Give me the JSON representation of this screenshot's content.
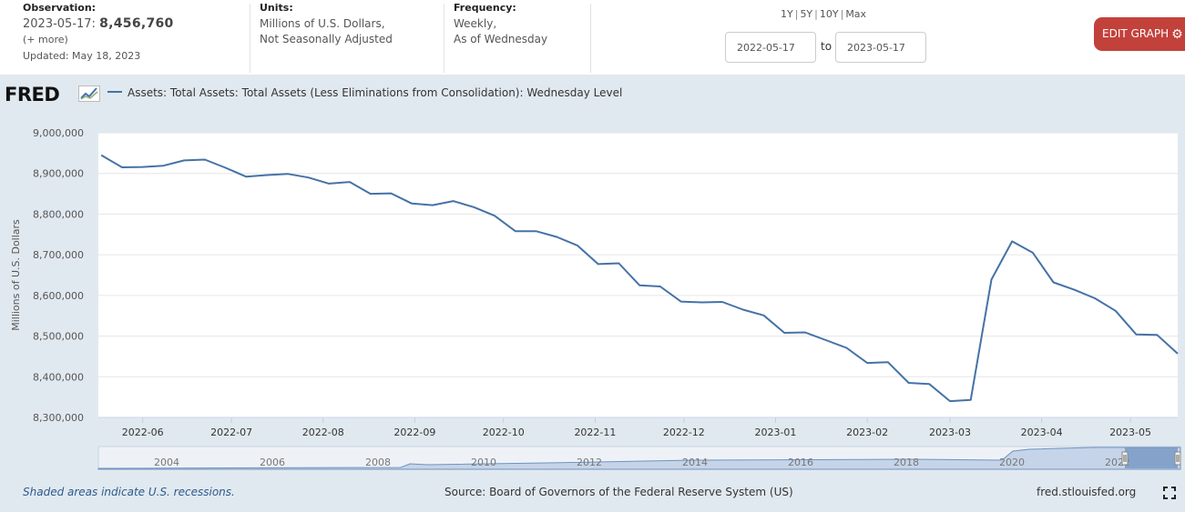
{
  "header": {
    "observation": {
      "label": "Observation:",
      "date": "2023-05-17:",
      "value": "8,456,760",
      "more": "(+ more)",
      "updated": "Updated: May 18, 2023"
    },
    "units": {
      "label": "Units:",
      "line1": "Millions of U.S. Dollars,",
      "line2": "Not Seasonally Adjusted"
    },
    "frequency": {
      "label": "Frequency:",
      "line1": "Weekly,",
      "line2": "As of Wednesday"
    },
    "ranges": [
      "1Y",
      "5Y",
      "10Y",
      "Max"
    ],
    "start_date": "2022-05-17",
    "to_label": "to",
    "end_date": "2023-05-17",
    "edit_button": "EDIT GRAPH"
  },
  "graph": {
    "logo_text": "FRED",
    "footer_recession": "Shaded areas indicate U.S. recessions.",
    "footer_source": "Source: Board of Governors of the Federal Reserve System (US)",
    "footer_site": "fred.stlouisfed.org"
  },
  "colors": {
    "series": "#4572a7",
    "background": "#e1e9f0",
    "edit_button": "#c3413b",
    "navigator_fill": "#6f93c0"
  },
  "chart_data": {
    "type": "line",
    "series": [
      {
        "name": "Assets: Total Assets: Total Assets (Less Eliminations from Consolidation): Wednesday Level",
        "x": [
          "2022-05-18",
          "2022-05-25",
          "2022-06-01",
          "2022-06-08",
          "2022-06-15",
          "2022-06-22",
          "2022-06-29",
          "2022-07-06",
          "2022-07-13",
          "2022-07-20",
          "2022-07-27",
          "2022-08-03",
          "2022-08-10",
          "2022-08-17",
          "2022-08-24",
          "2022-08-31",
          "2022-09-07",
          "2022-09-14",
          "2022-09-21",
          "2022-09-28",
          "2022-10-05",
          "2022-10-12",
          "2022-10-19",
          "2022-10-26",
          "2022-11-02",
          "2022-11-09",
          "2022-11-16",
          "2022-11-23",
          "2022-11-30",
          "2022-12-07",
          "2022-12-14",
          "2022-12-21",
          "2022-12-28",
          "2023-01-04",
          "2023-01-11",
          "2023-01-18",
          "2023-01-25",
          "2023-02-01",
          "2023-02-08",
          "2023-02-15",
          "2023-02-22",
          "2023-03-01",
          "2023-03-08",
          "2023-03-15",
          "2023-03-22",
          "2023-03-29",
          "2023-04-05",
          "2023-04-12",
          "2023-04-19",
          "2023-04-26",
          "2023-05-03",
          "2023-05-10",
          "2023-05-17"
        ],
        "values": [
          8945000,
          8915000,
          8916000,
          8919000,
          8932000,
          8934000,
          8914000,
          8892000,
          8896000,
          8899000,
          8890000,
          8875000,
          8879000,
          8850000,
          8851000,
          8826000,
          8822000,
          8832000,
          8817000,
          8796000,
          8758000,
          8758000,
          8744000,
          8723000,
          8677000,
          8679000,
          8625000,
          8622000,
          8585000,
          8583000,
          8584000,
          8565000,
          8551000,
          8508000,
          8509000,
          8490000,
          8471000,
          8434000,
          8436000,
          8385000,
          8382000,
          8340000,
          8343000,
          8639000,
          8733000,
          8705000,
          8632000,
          8614000,
          8593000,
          8562000,
          8504000,
          8503000,
          8456760
        ]
      }
    ],
    "xlabel": "",
    "ylabel": "Millions of U.S. Dollars",
    "xlim": [
      "2022-05-17",
      "2023-05-17"
    ],
    "ylim": [
      8300000,
      9000000
    ],
    "yticks": [
      "8,300,000",
      "8,400,000",
      "8,500,000",
      "8,600,000",
      "8,700,000",
      "8,800,000",
      "8,900,000",
      "9,000,000"
    ],
    "xticks": [
      "2022-06",
      "2022-07",
      "2022-08",
      "2022-09",
      "2022-10",
      "2022-11",
      "2022-12",
      "2023-01",
      "2023-02",
      "2023-03",
      "2023-04",
      "2023-05"
    ],
    "grid": true,
    "legend": "top-left",
    "navigator": {
      "labels": [
        "2004",
        "2006",
        "2008",
        "2010",
        "2012",
        "2014",
        "2016",
        "2018",
        "2020",
        "2022"
      ],
      "selected_range": [
        "2022-05-17",
        "2023-05-17"
      ]
    }
  }
}
